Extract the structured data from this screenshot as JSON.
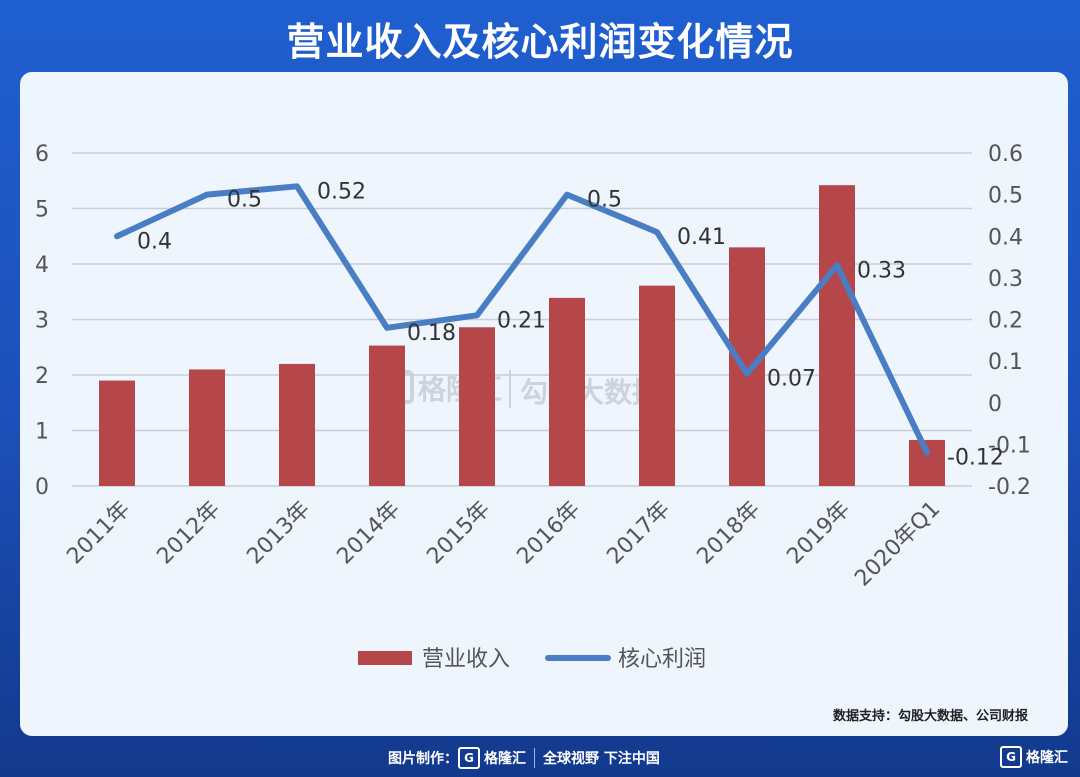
{
  "title": "营业收入及核心利润变化情况",
  "source": "数据支持：勾股大数据、公司财报",
  "footer": {
    "made_by": "图片制作：",
    "brand": "格隆汇",
    "slogan": "全球视野 下注中国",
    "corner_brand": "格隆汇"
  },
  "watermark": {
    "brand": "格隆汇",
    "name": "勾股大数据"
  },
  "colors": {
    "bar": "#b5474a",
    "line": "#4a7ec4"
  },
  "chart_data": {
    "type": "bar",
    "categories": [
      "2011年",
      "2012年",
      "2013年",
      "2014年",
      "2015年",
      "2016年",
      "2017年",
      "2018年",
      "2019年",
      "2020年Q1"
    ],
    "series": [
      {
        "name": "营业收入",
        "type": "bar",
        "axis": "left",
        "values": [
          1.9,
          2.1,
          2.2,
          2.53,
          2.86,
          3.39,
          3.61,
          4.3,
          5.42,
          0.83
        ]
      },
      {
        "name": "核心利润",
        "type": "line",
        "axis": "right",
        "values": [
          0.4,
          0.5,
          0.52,
          0.18,
          0.21,
          0.5,
          0.41,
          0.07,
          0.33,
          -0.12
        ]
      }
    ],
    "data_labels": [
      "0.4",
      "0.5",
      "0.52",
      "0.18",
      "0.21",
      "0.5",
      "0.41",
      "0.07",
      "0.33",
      "-0.12"
    ],
    "y_left": {
      "min": 0,
      "max": 6,
      "ticks": [
        "0",
        "1",
        "2",
        "3",
        "4",
        "5",
        "6"
      ]
    },
    "y_right": {
      "min": -0.2,
      "max": 0.6,
      "ticks": [
        "-0.2",
        "-0.1",
        "0",
        "0.1",
        "0.2",
        "0.3",
        "0.4",
        "0.5",
        "0.6"
      ]
    },
    "grid": true,
    "legend": "bottom-center"
  }
}
